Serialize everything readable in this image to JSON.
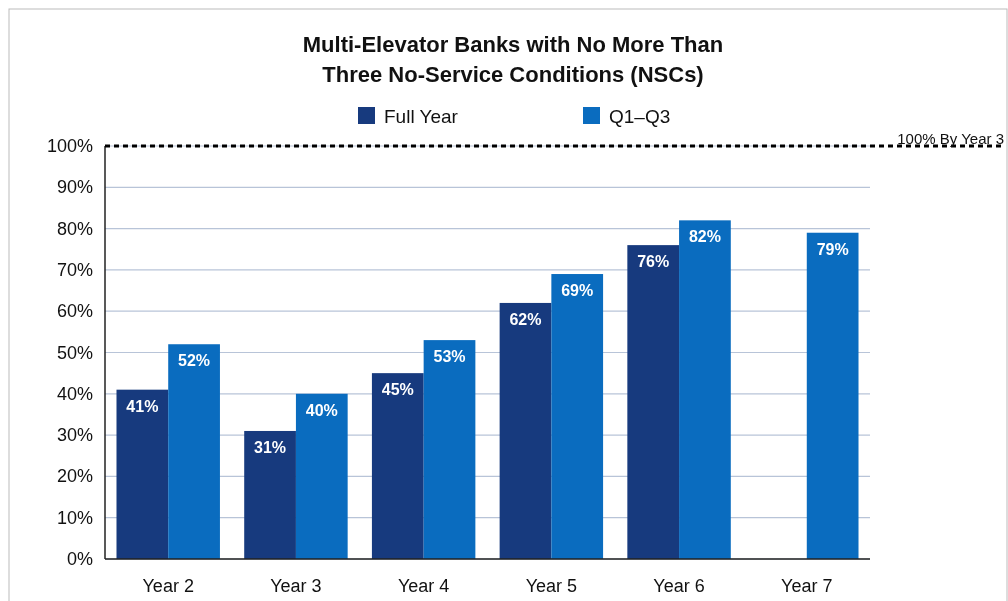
{
  "chart_data": {
    "type": "bar",
    "title": "Multi-Elevator Banks with No More Than Three No-Service Conditions (NSCs)",
    "categories": [
      "Year 2",
      "Year 3",
      "Year 4",
      "Year 5",
      "Year 6",
      "Year 7"
    ],
    "series": [
      {
        "name": "Full Year",
        "color": "#173a7e",
        "values": [
          41,
          31,
          45,
          62,
          76,
          null
        ],
        "value_labels": [
          "41%",
          "31%",
          "45%",
          "62%",
          "76%",
          null
        ]
      },
      {
        "name": "Q1–Q3",
        "color": "#0a6cbf",
        "values": [
          52,
          40,
          53,
          69,
          82,
          79
        ],
        "value_labels": [
          "52%",
          "40%",
          "53%",
          "69%",
          "82%",
          "79%"
        ]
      }
    ],
    "ylim": [
      0,
      100
    ],
    "yticks": [
      {
        "value": 0,
        "label": "0%"
      },
      {
        "value": 10,
        "label": "10%"
      },
      {
        "value": 20,
        "label": "20%"
      },
      {
        "value": 30,
        "label": "30%"
      },
      {
        "value": 40,
        "label": "40%"
      },
      {
        "value": 50,
        "label": "50%"
      },
      {
        "value": 60,
        "label": "60%"
      },
      {
        "value": 70,
        "label": "70%"
      },
      {
        "value": 80,
        "label": "80%"
      },
      {
        "value": 90,
        "label": "90%"
      },
      {
        "value": 100,
        "label": "100%"
      }
    ],
    "grid": "y",
    "legend": "top",
    "ref_lines": [
      {
        "axis": "y",
        "value": 100,
        "label": "100% By Year 3",
        "color": "#000000",
        "line_style": "dashed"
      }
    ]
  }
}
